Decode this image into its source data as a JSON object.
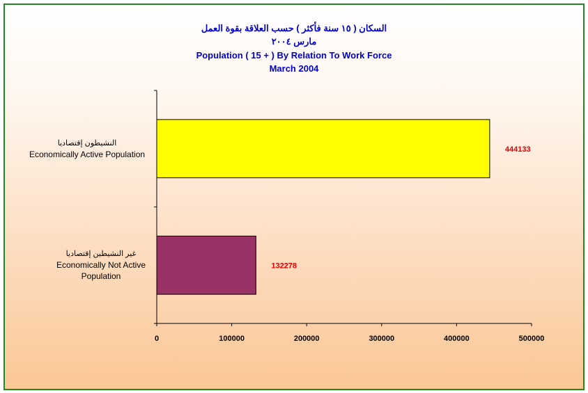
{
  "title": {
    "arabic_line1": "السكان ( ١٥ سنة فأكثر ) حسب العلاقة بقوة العمل",
    "arabic_line2": "مارس ٢٠٠٤",
    "english_line1": "Population  ( 15 + ) By Relation To Work Force",
    "english_line2": "March 2004"
  },
  "colors": {
    "frame_border": "#1f8a1f",
    "title": "#0000cc",
    "data_label": "#e00000"
  },
  "chart_data": {
    "type": "bar",
    "orientation": "horizontal",
    "categories": [
      {
        "arabic": "النشيطون إقتصاديا",
        "english": [
          "Economically Active Population"
        ]
      },
      {
        "arabic": "غير النشيطين إقتصاديا",
        "english": [
          "Economically Not Active",
          "Population"
        ]
      }
    ],
    "values": [
      444133,
      132278
    ],
    "bar_colors": [
      "#ffff00",
      "#993366"
    ],
    "xlim": [
      0,
      500000
    ],
    "xticks": [
      "0",
      "100000",
      "200000",
      "300000",
      "400000",
      "500000"
    ],
    "grid": false,
    "legend": "none"
  }
}
